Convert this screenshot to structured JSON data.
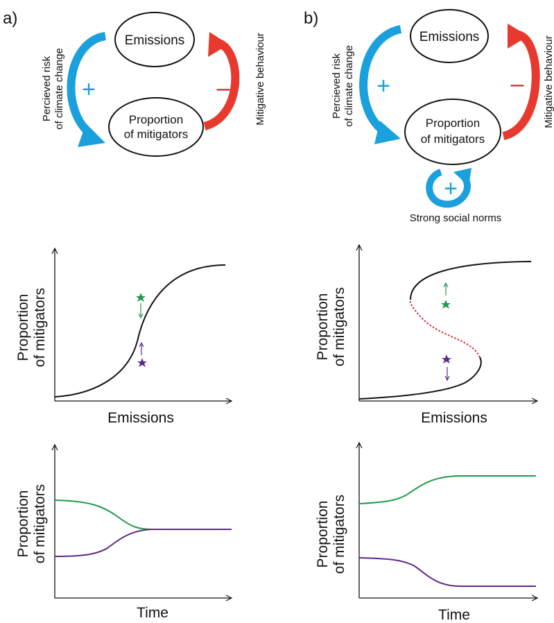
{
  "panels": {
    "a": {
      "label": "a)",
      "diagram": {
        "node_top": "Emissions",
        "node_bottom_line1": "Proportion",
        "node_bottom_line2": "of mitigators",
        "left_arrow_line1": "Percieved risk",
        "left_arrow_line2": "of climate change",
        "left_sign": "+",
        "right_arrow_label": "Mitigative behaviour",
        "right_sign": "–"
      },
      "middle_plot": {
        "ylabel_line1": "Proportion",
        "ylabel_line2": "of mitigators",
        "xlabel": "Emissions"
      },
      "bottom_plot": {
        "ylabel_line1": "Proportion",
        "ylabel_line2": "of mitigators",
        "xlabel": "Time"
      }
    },
    "b": {
      "label": "b)",
      "diagram": {
        "node_top": "Emissions",
        "node_bottom_line1": "Proportion",
        "node_bottom_line2": "of mitigators",
        "left_arrow_line1": "Percieved risk",
        "left_arrow_line2": "of climate change",
        "left_sign": "+",
        "right_arrow_label": "Mitigative behaviour",
        "right_sign": "–",
        "loop_sign": "+",
        "loop_label": "Strong social norms"
      },
      "middle_plot": {
        "ylabel_line1": "Proportion",
        "ylabel_line2": "of mitigators",
        "xlabel": "Emissions"
      },
      "bottom_plot": {
        "ylabel_line1": "Proportion",
        "ylabel_line2": "of mitigators",
        "xlabel": "Time"
      }
    }
  },
  "colors": {
    "blue_arrow": "#1ba0de",
    "red_arrow": "#e8392e",
    "red_sign": "#c8282d",
    "green": "#1f9a48",
    "purple": "#5b2a86",
    "curve": "#111111"
  }
}
